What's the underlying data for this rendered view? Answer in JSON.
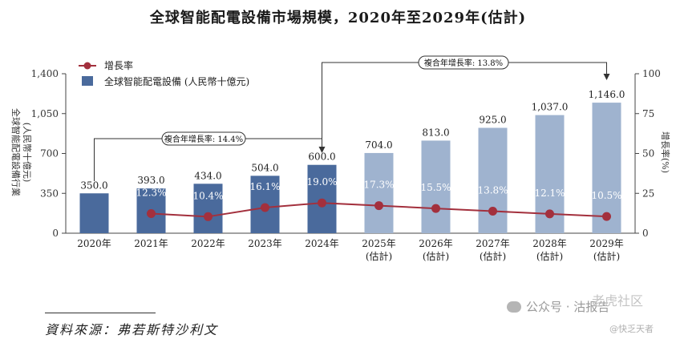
{
  "chart_data": {
    "type": "bar",
    "title": "全球智能配電設備市場規模，2020年至2029年(估計)",
    "categories": [
      "2020年",
      "2021年",
      "2022年",
      "2023年",
      "2024年",
      "2025年",
      "2026年",
      "2027年",
      "2028年",
      "2029年"
    ],
    "category_sublabels": [
      "",
      "",
      "",
      "",
      "",
      "(估計)",
      "(估計)",
      "(估計)",
      "(估計)",
      "(估計)"
    ],
    "series": [
      {
        "name": "全球智能配電設備 (人民幣十億元)",
        "axis": "left",
        "values": [
          350.0,
          393.0,
          434.0,
          504.0,
          600.0,
          704.0,
          813.0,
          925.0,
          1037.0,
          1146.0
        ],
        "labels": [
          "350.0",
          "393.0",
          "434.0",
          "504.0",
          "600.0",
          "704.0",
          "813.0",
          "925.0",
          "1,037.0",
          "1,146.0"
        ],
        "forecast_from_index": 5
      },
      {
        "name": "增長率",
        "axis": "right",
        "type": "line",
        "values": [
          null,
          12.3,
          10.4,
          16.1,
          19.0,
          17.3,
          15.5,
          13.8,
          12.1,
          10.5
        ],
        "labels": [
          "",
          "12.3%",
          "10.4%",
          "16.1%",
          "19.0%",
          "17.3%",
          "15.5%",
          "13.8%",
          "12.1%",
          "10.5%"
        ]
      }
    ],
    "ylabel": "全球智能配電設備行業(人民幣十億元)",
    "ylabel_lines": [
      "全球智能配電設備行業",
      "(人民幣十億元)"
    ],
    "ylim": [
      0,
      1400
    ],
    "yticks": [
      0,
      350,
      700,
      1050,
      1400
    ],
    "ytick_labels": [
      "0",
      "350",
      "700",
      "1,050",
      "1,400"
    ],
    "y2label": "增長率(%)",
    "y2lim": [
      0,
      100
    ],
    "y2ticks": [
      0,
      25,
      50,
      75,
      100
    ],
    "y2tick_labels": [
      "0",
      "25",
      "50",
      "75",
      "100"
    ],
    "legend": [
      "增長率",
      "全球智能配電設備 (人民幣十億元)"
    ],
    "legend_position": "top-left",
    "annotations": [
      {
        "text": "複合年增長率: 14.4%",
        "from": "2020年",
        "to": "2024年"
      },
      {
        "text": "複合年增長率: 13.8%",
        "from": "2024年",
        "to": "2029年"
      }
    ],
    "colors": {
      "actual_bar": "#4a6a9c",
      "forecast_bar": "#9fb3cf",
      "line": "#a3303d",
      "axis": "#444444"
    }
  },
  "source": "資料來源：弗若斯特沙利文",
  "watermark": {
    "account": "公众号 · 沽报告",
    "top": "老虎社区",
    "user": "@快乏天者"
  }
}
